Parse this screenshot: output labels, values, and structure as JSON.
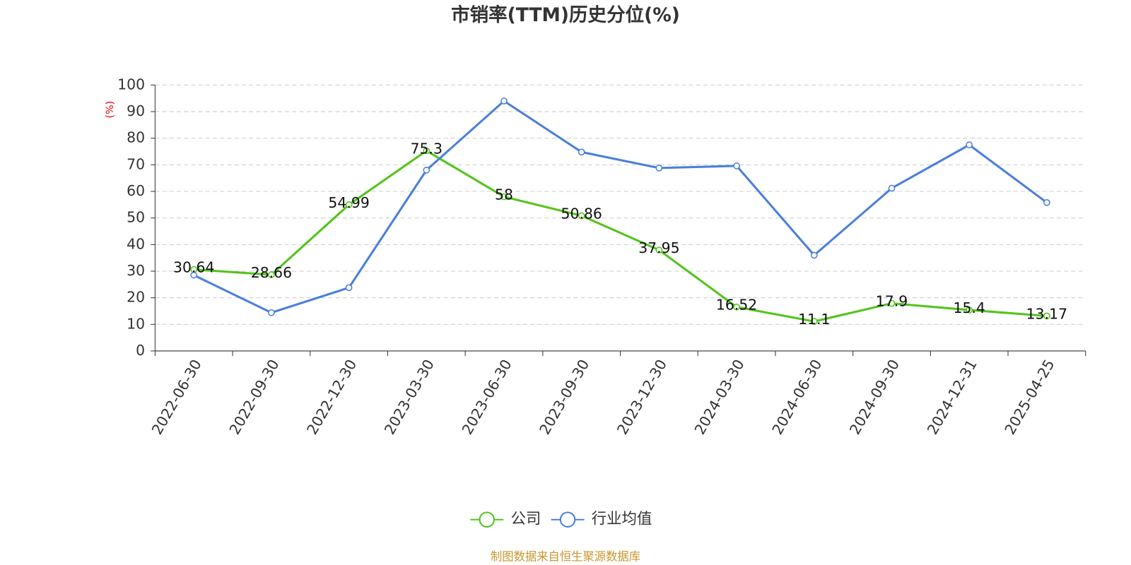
{
  "chart_data": {
    "type": "line",
    "title": "市销率(TTM)历史分位(%)",
    "y_label": "(%)",
    "categories": [
      "2022-06-30",
      "2022-09-30",
      "2022-12-30",
      "2023-03-30",
      "2023-06-30",
      "2023-09-30",
      "2023-12-30",
      "2024-03-30",
      "2024-06-30",
      "2024-09-30",
      "2024-12-31",
      "2025-04-25"
    ],
    "series": [
      {
        "name": "公司",
        "color": "#52c41a",
        "values": [
          30.64,
          28.66,
          54.99,
          75.3,
          58,
          50.86,
          37.95,
          16.52,
          11.1,
          17.9,
          15.4,
          13.17
        ],
        "show_labels": true
      },
      {
        "name": "行业均值",
        "color": "#4a7fdc",
        "values": [
          28.5,
          14.4,
          23.8,
          68,
          94,
          74.8,
          68.8,
          69.6,
          36,
          61.2,
          77.5,
          55.8
        ],
        "show_labels": false
      }
    ],
    "ylim": [
      0,
      100
    ],
    "yticks": [
      0,
      10,
      20,
      30,
      40,
      50,
      60,
      70,
      80,
      90,
      100
    ],
    "grid": true,
    "legend": "bottom",
    "source": "制图数据来自恒生聚源数据库"
  }
}
